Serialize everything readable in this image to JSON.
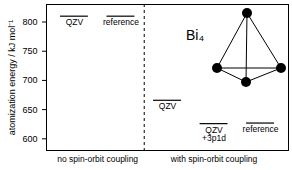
{
  "chart_data": {
    "type": "level",
    "y_label": "atomization energy / kJ mol⁻¹",
    "categories": [
      "QZV",
      "reference",
      "QZV",
      "QZV\n+3p1d",
      "reference"
    ],
    "groups": [
      "no spin-orbit coupling",
      "no spin-orbit coupling",
      "with spin-orbit coupling",
      "with spin-orbit coupling",
      "with spin-orbit coupling"
    ],
    "values": [
      810,
      810,
      666,
      626,
      627
    ],
    "ylim": [
      580,
      830
    ],
    "yticks": [
      600,
      650,
      700,
      750,
      800
    ],
    "tick_labels": "y",
    "color": "#000000",
    "annotation": "Bi₄"
  }
}
